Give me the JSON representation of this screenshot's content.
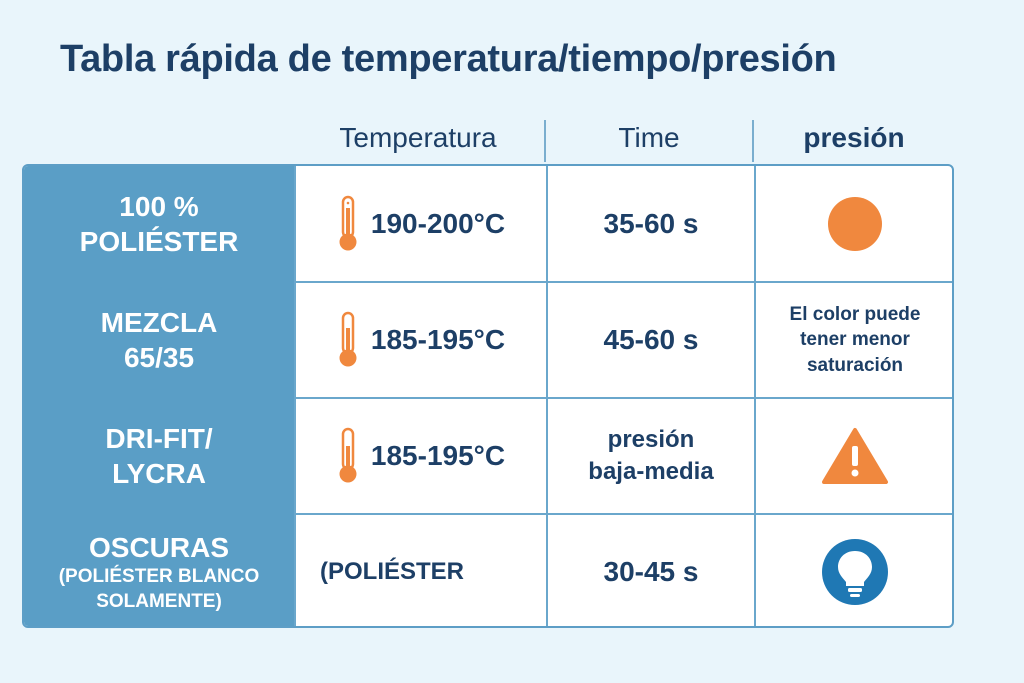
{
  "title": "Tabla rápida de temperatura/tiempo/presión",
  "headers": {
    "temperature": "Temperatura",
    "time": "Time",
    "pressure": "presión"
  },
  "colors": {
    "background": "#e9f5fb",
    "label_column": "#5a9ec6",
    "text": "#1d3f66",
    "accent_orange": "#f0883e",
    "accent_blue": "#1f78b4"
  },
  "rows": [
    {
      "label_line1": "100 %",
      "label_line2": "POLIÉSTER",
      "temperature": "190-200°C",
      "temperature_icon": "thermometer-icon",
      "time": "35-60 s",
      "pressure_icon": "orange-circle-icon"
    },
    {
      "label_line1": "MEZCLA",
      "label_line2": "65/35",
      "temperature": "185-195°C",
      "temperature_icon": "thermometer-icon",
      "time": "45-60 s",
      "pressure_line1": "El color puede",
      "pressure_line2": "tener menor",
      "pressure_line3": "saturación"
    },
    {
      "label_line1": "DRI-FIT/",
      "label_line2": "LYCRA",
      "temperature": "185-195°C",
      "temperature_icon": "thermometer-icon",
      "time_line1": "presión",
      "time_line2": "baja-media",
      "pressure_icon": "warning-icon"
    },
    {
      "label_line1": "OSCURAS",
      "label_line2": "(POLIÉSTER BLANCO",
      "label_line3": "SOLAMENTE)",
      "temperature": "(POLIÉSTER",
      "time": "30-45 s",
      "pressure_icon": "lightbulb-icon"
    }
  ]
}
